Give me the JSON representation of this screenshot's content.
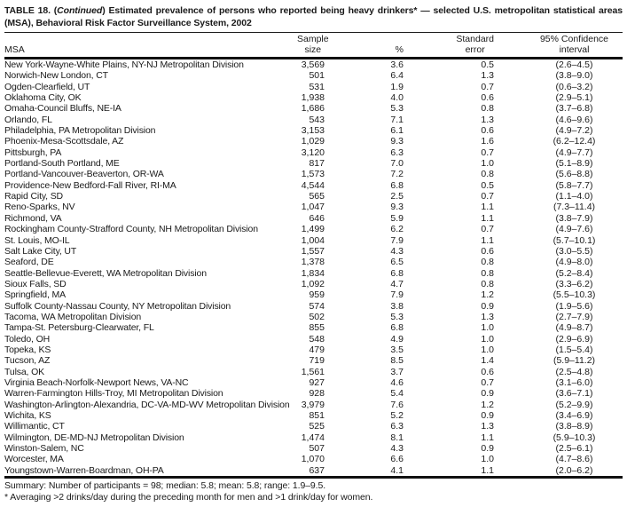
{
  "colors": {
    "background": "#ffffff",
    "text": "#1a1a1a",
    "rule": "#111111"
  },
  "document": {
    "title": {
      "prefix": "TABLE 18. (",
      "continued": "Continued",
      "rest": ") Estimated prevalence of persons who reported being heavy drinkers* — selected U.S. metropolitan statistical areas (MSA), Behavioral Risk Factor Surveillance System, 2002"
    }
  },
  "table": {
    "headers": {
      "msa": "MSA",
      "sample": [
        "Sample",
        "size"
      ],
      "percent": "%",
      "standard_error": [
        "Standard",
        "error"
      ],
      "confidence_interval": [
        "95% Confidence",
        "interval"
      ]
    },
    "rows": [
      [
        "New York-Wayne-White Plains, NY-NJ Metropolitan Division",
        "3,569",
        "3.6",
        "0.5",
        "(2.6–4.5)"
      ],
      [
        "Norwich-New London, CT",
        "501",
        "6.4",
        "1.3",
        "(3.8–9.0)"
      ],
      [
        "Ogden-Clearfield, UT",
        "531",
        "1.9",
        "0.7",
        "(0.6–3.2)"
      ],
      [
        "Oklahoma City, OK",
        "1,938",
        "4.0",
        "0.6",
        "(2.9–5.1)"
      ],
      [
        "Omaha-Council Bluffs, NE-IA",
        "1,686",
        "5.3",
        "0.8",
        "(3.7–6.8)"
      ],
      [
        "Orlando, FL",
        "543",
        "7.1",
        "1.3",
        "(4.6–9.6)"
      ],
      [
        "Philadelphia, PA Metropolitan Division",
        "3,153",
        "6.1",
        "0.6",
        "(4.9–7.2)"
      ],
      [
        "Phoenix-Mesa-Scottsdale, AZ",
        "1,029",
        "9.3",
        "1.6",
        "(6.2–12.4)"
      ],
      [
        "Pittsburgh, PA",
        "3,120",
        "6.3",
        "0.7",
        "(4.9–7.7)"
      ],
      [
        "Portland-South Portland, ME",
        "817",
        "7.0",
        "1.0",
        "(5.1–8.9)"
      ],
      [
        "Portland-Vancouver-Beaverton, OR-WA",
        "1,573",
        "7.2",
        "0.8",
        "(5.6–8.8)"
      ],
      [
        "Providence-New Bedford-Fall River, RI-MA",
        "4,544",
        "6.8",
        "0.5",
        "(5.8–7.7)"
      ],
      [
        "Rapid City, SD",
        "565",
        "2.5",
        "0.7",
        "(1.1–4.0)"
      ],
      [
        "Reno-Sparks, NV",
        "1,047",
        "9.3",
        "1.1",
        "(7.3–11.4)"
      ],
      [
        "Richmond, VA",
        "646",
        "5.9",
        "1.1",
        "(3.8–7.9)"
      ],
      [
        "Rockingham County-Strafford County, NH Metropolitan Division",
        "1,499",
        "6.2",
        "0.7",
        "(4.9–7.6)"
      ],
      [
        "St. Louis, MO-IL",
        "1,004",
        "7.9",
        "1.1",
        "(5.7–10.1)"
      ],
      [
        "Salt Lake City, UT",
        "1,557",
        "4.3",
        "0.6",
        "(3.0–5.5)"
      ],
      [
        "Seaford, DE",
        "1,378",
        "6.5",
        "0.8",
        "(4.9–8.0)"
      ],
      [
        "Seattle-Bellevue-Everett, WA Metropolitan Division",
        "1,834",
        "6.8",
        "0.8",
        "(5.2–8.4)"
      ],
      [
        "Sioux Falls, SD",
        "1,092",
        "4.7",
        "0.8",
        "(3.3–6.2)"
      ],
      [
        "Springfield, MA",
        "959",
        "7.9",
        "1.2",
        "(5.5–10.3)"
      ],
      [
        "Suffolk County-Nassau County, NY Metropolitan Division",
        "574",
        "3.8",
        "0.9",
        "(1.9–5.6)"
      ],
      [
        "Tacoma, WA Metropolitan Division",
        "502",
        "5.3",
        "1.3",
        "(2.7–7.9)"
      ],
      [
        "Tampa-St. Petersburg-Clearwater, FL",
        "855",
        "6.8",
        "1.0",
        "(4.9–8.7)"
      ],
      [
        "Toledo, OH",
        "548",
        "4.9",
        "1.0",
        "(2.9–6.9)"
      ],
      [
        "Topeka, KS",
        "479",
        "3.5",
        "1.0",
        "(1.5–5.4)"
      ],
      [
        "Tucson, AZ",
        "719",
        "8.5",
        "1.4",
        "(5.9–11.2)"
      ],
      [
        "Tulsa, OK",
        "1,561",
        "3.7",
        "0.6",
        "(2.5–4.8)"
      ],
      [
        "Virginia Beach-Norfolk-Newport News, VA-NC",
        "927",
        "4.6",
        "0.7",
        "(3.1–6.0)"
      ],
      [
        "Warren-Farmington Hills-Troy, MI Metropolitan Division",
        "928",
        "5.4",
        "0.9",
        "(3.6–7.1)"
      ],
      [
        "Washington-Arlington-Alexandria, DC-VA-MD-WV Metropolitan Division",
        "3,979",
        "7.6",
        "1.2",
        "(5.2–9.9)"
      ],
      [
        "Wichita, KS",
        "851",
        "5.2",
        "0.9",
        "(3.4–6.9)"
      ],
      [
        "Willimantic, CT",
        "525",
        "6.3",
        "1.3",
        "(3.8–8.9)"
      ],
      [
        "Wilmington, DE-MD-NJ Metropolitan Division",
        "1,474",
        "8.1",
        "1.1",
        "(5.9–10.3)"
      ],
      [
        "Winston-Salem, NC",
        "507",
        "4.3",
        "0.9",
        "(2.5–6.1)"
      ],
      [
        "Worcester, MA",
        "1,070",
        "6.6",
        "1.0",
        "(4.7–8.6)"
      ],
      [
        "Youngstown-Warren-Boardman, OH-PA",
        "637",
        "4.1",
        "1.1",
        "(2.0–6.2)"
      ]
    ]
  },
  "footer": {
    "summary": "Summary: Number of participants = 98; median: 5.8; mean: 5.8; range: 1.9–9.5.",
    "footnote": "* Averaging >2 drinks/day during the preceding month for men and >1 drink/day for women."
  }
}
